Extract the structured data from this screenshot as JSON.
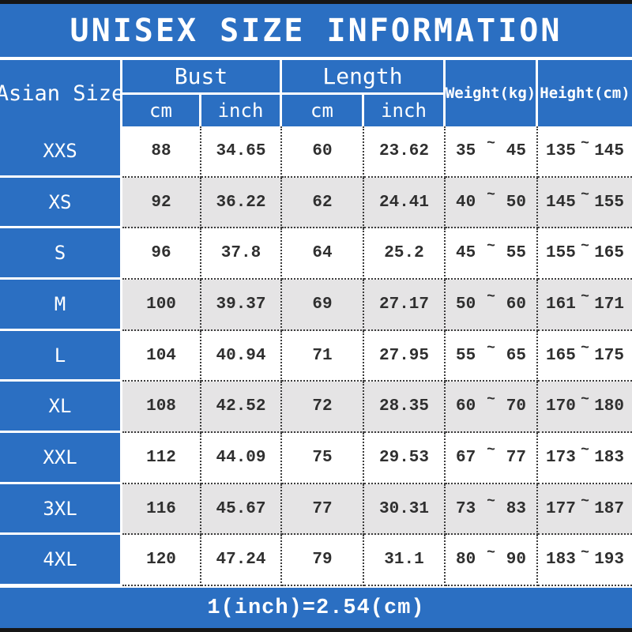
{
  "title": "UNISEX SIZE INFORMATION",
  "footer_note": "1(inch)=2.54(cm)",
  "chars": {
    "tilde": "~"
  },
  "colors": {
    "accent_blue": "#2b6fc2",
    "alt_row_gray": "#e5e4e5",
    "strip_black": "#161616",
    "text_dark": "#2f2f2f"
  },
  "table": {
    "size_header": "Asian Size",
    "group_bust": "Bust",
    "group_length": "Length",
    "sub_cm": "cm",
    "sub_inch": "inch",
    "weight_header": "Weight(kg)",
    "height_header": "Height(cm)",
    "rows": [
      {
        "size": "XXS",
        "bust_cm": "88",
        "bust_in": "34.65",
        "len_cm": "60",
        "len_in": "23.62",
        "w_lo": "35",
        "w_hi": "45",
        "h_lo": "135",
        "h_hi": "145"
      },
      {
        "size": "XS",
        "bust_cm": "92",
        "bust_in": "36.22",
        "len_cm": "62",
        "len_in": "24.41",
        "w_lo": "40",
        "w_hi": "50",
        "h_lo": "145",
        "h_hi": "155"
      },
      {
        "size": "S",
        "bust_cm": "96",
        "bust_in": "37.8",
        "len_cm": "64",
        "len_in": "25.2",
        "w_lo": "45",
        "w_hi": "55",
        "h_lo": "155",
        "h_hi": "165"
      },
      {
        "size": "M",
        "bust_cm": "100",
        "bust_in": "39.37",
        "len_cm": "69",
        "len_in": "27.17",
        "w_lo": "50",
        "w_hi": "60",
        "h_lo": "161",
        "h_hi": "171"
      },
      {
        "size": "L",
        "bust_cm": "104",
        "bust_in": "40.94",
        "len_cm": "71",
        "len_in": "27.95",
        "w_lo": "55",
        "w_hi": "65",
        "h_lo": "165",
        "h_hi": "175"
      },
      {
        "size": "XL",
        "bust_cm": "108",
        "bust_in": "42.52",
        "len_cm": "72",
        "len_in": "28.35",
        "w_lo": "60",
        "w_hi": "70",
        "h_lo": "170",
        "h_hi": "180"
      },
      {
        "size": "XXL",
        "bust_cm": "112",
        "bust_in": "44.09",
        "len_cm": "75",
        "len_in": "29.53",
        "w_lo": "67",
        "w_hi": "77",
        "h_lo": "173",
        "h_hi": "183"
      },
      {
        "size": "3XL",
        "bust_cm": "116",
        "bust_in": "45.67",
        "len_cm": "77",
        "len_in": "30.31",
        "w_lo": "73",
        "w_hi": "83",
        "h_lo": "177",
        "h_hi": "187"
      },
      {
        "size": "4XL",
        "bust_cm": "120",
        "bust_in": "47.24",
        "len_cm": "79",
        "len_in": "31.1",
        "w_lo": "80",
        "w_hi": "90",
        "h_lo": "183",
        "h_hi": "193"
      }
    ]
  }
}
